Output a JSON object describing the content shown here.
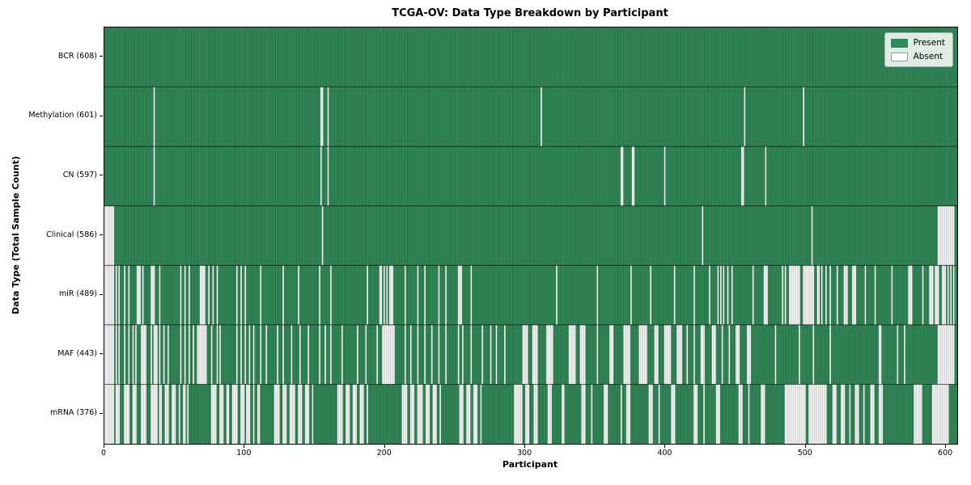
{
  "figure": {
    "title": "TCGA-OV: Data Type Breakdown by Participant",
    "xlabel": "Participant",
    "ylabel": "Data Type (Total Sample Count)"
  },
  "legend": {
    "items": [
      {
        "label": "Present",
        "color": "#2e8b57",
        "border": "#2e8b57"
      },
      {
        "label": "Absent",
        "color": "#ffffff",
        "border": "#999999"
      }
    ]
  },
  "chart_data": {
    "type": "heatmap",
    "title": "TCGA-OV: Data Type Breakdown by Participant",
    "xlabel": "Participant",
    "ylabel": "Data Type (Total Sample Count)",
    "legend": [
      "Present",
      "Absent"
    ],
    "legend_position": "upper right",
    "n_participants": 608,
    "x_range": [
      0,
      608
    ],
    "x_ticks": [
      0,
      100,
      200,
      300,
      400,
      500,
      600
    ],
    "colors": {
      "present": "#2e8b57",
      "absent": "#ffffff",
      "cell_edge": "rgba(0,0,0,0.32)",
      "row_separator": "#111111",
      "spine": "#000000"
    },
    "rows": [
      {
        "name": "BCR",
        "present_count": 608,
        "label": "BCR (608)",
        "absent_ranges": []
      },
      {
        "name": "Methylation",
        "present_count": 601,
        "label": "Methylation (601)",
        "absent_ranges": [
          [
            35,
            35
          ],
          [
            154,
            155
          ],
          [
            159,
            159
          ],
          [
            311,
            311
          ],
          [
            456,
            456
          ],
          [
            498,
            498
          ]
        ]
      },
      {
        "name": "CN",
        "present_count": 597,
        "label": "CN (597)",
        "absent_ranges": [
          [
            35,
            35
          ],
          [
            154,
            154
          ],
          [
            159,
            159
          ],
          [
            368,
            369
          ],
          [
            376,
            377
          ],
          [
            399,
            399
          ],
          [
            454,
            455
          ],
          [
            471,
            471
          ]
        ]
      },
      {
        "name": "Clinical",
        "present_count": 586,
        "label": "Clinical (586)",
        "absent_ranges": [
          [
            0,
            6
          ],
          [
            155,
            155
          ],
          [
            426,
            426
          ],
          [
            504,
            504
          ],
          [
            594,
            605
          ]
        ]
      },
      {
        "name": "miR",
        "present_count": 489,
        "label": "miR (489)",
        "absent_ranges": [
          [
            0,
            6
          ],
          [
            8,
            8
          ],
          [
            10,
            10
          ],
          [
            14,
            14
          ],
          [
            17,
            17
          ],
          [
            23,
            25
          ],
          [
            27,
            27
          ],
          [
            33,
            35
          ],
          [
            39,
            39
          ],
          [
            54,
            54
          ],
          [
            57,
            57
          ],
          [
            60,
            60
          ],
          [
            68,
            71
          ],
          [
            74,
            74
          ],
          [
            77,
            77
          ],
          [
            80,
            80
          ],
          [
            94,
            94
          ],
          [
            97,
            97
          ],
          [
            100,
            100
          ],
          [
            111,
            111
          ],
          [
            127,
            127
          ],
          [
            138,
            138
          ],
          [
            153,
            153
          ],
          [
            161,
            161
          ],
          [
            187,
            187
          ],
          [
            196,
            197
          ],
          [
            199,
            199
          ],
          [
            201,
            201
          ],
          [
            203,
            205
          ],
          [
            214,
            214
          ],
          [
            223,
            223
          ],
          [
            228,
            228
          ],
          [
            238,
            238
          ],
          [
            243,
            243
          ],
          [
            252,
            254
          ],
          [
            261,
            261
          ],
          [
            322,
            322
          ],
          [
            351,
            351
          ],
          [
            375,
            375
          ],
          [
            389,
            389
          ],
          [
            406,
            406
          ],
          [
            420,
            420
          ],
          [
            431,
            431
          ],
          [
            437,
            437
          ],
          [
            439,
            439
          ],
          [
            441,
            441
          ],
          [
            444,
            444
          ],
          [
            447,
            447
          ],
          [
            462,
            462
          ],
          [
            470,
            472
          ],
          [
            483,
            483
          ],
          [
            485,
            485
          ],
          [
            488,
            495
          ],
          [
            498,
            505
          ],
          [
            508,
            509
          ],
          [
            511,
            511
          ],
          [
            514,
            514
          ],
          [
            517,
            517
          ],
          [
            522,
            522
          ],
          [
            527,
            529
          ],
          [
            533,
            535
          ],
          [
            542,
            542
          ],
          [
            549,
            549
          ],
          [
            561,
            561
          ],
          [
            573,
            575
          ],
          [
            583,
            583
          ],
          [
            588,
            590
          ],
          [
            592,
            594
          ],
          [
            597,
            599
          ],
          [
            601,
            601
          ],
          [
            603,
            603
          ],
          [
            605,
            605
          ]
        ]
      },
      {
        "name": "MAF",
        "present_count": 443,
        "label": "MAF (443)",
        "absent_ranges": [
          [
            0,
            6
          ],
          [
            8,
            8
          ],
          [
            10,
            10
          ],
          [
            14,
            14
          ],
          [
            17,
            17
          ],
          [
            20,
            20
          ],
          [
            22,
            22
          ],
          [
            26,
            29
          ],
          [
            33,
            33
          ],
          [
            35,
            37
          ],
          [
            39,
            39
          ],
          [
            42,
            42
          ],
          [
            45,
            45
          ],
          [
            54,
            54
          ],
          [
            57,
            57
          ],
          [
            60,
            60
          ],
          [
            63,
            63
          ],
          [
            66,
            72
          ],
          [
            76,
            76
          ],
          [
            80,
            80
          ],
          [
            82,
            82
          ],
          [
            94,
            94
          ],
          [
            97,
            97
          ],
          [
            100,
            100
          ],
          [
            103,
            103
          ],
          [
            106,
            106
          ],
          [
            111,
            111
          ],
          [
            115,
            115
          ],
          [
            123,
            123
          ],
          [
            127,
            127
          ],
          [
            133,
            133
          ],
          [
            139,
            139
          ],
          [
            145,
            145
          ],
          [
            153,
            153
          ],
          [
            157,
            157
          ],
          [
            161,
            161
          ],
          [
            169,
            169
          ],
          [
            180,
            180
          ],
          [
            186,
            186
          ],
          [
            194,
            194
          ],
          [
            198,
            206
          ],
          [
            214,
            214
          ],
          [
            218,
            218
          ],
          [
            223,
            223
          ],
          [
            228,
            228
          ],
          [
            233,
            233
          ],
          [
            238,
            238
          ],
          [
            243,
            243
          ],
          [
            252,
            252
          ],
          [
            255,
            255
          ],
          [
            261,
            261
          ],
          [
            269,
            269
          ],
          [
            275,
            275
          ],
          [
            279,
            279
          ],
          [
            285,
            285
          ],
          [
            298,
            301
          ],
          [
            305,
            308
          ],
          [
            315,
            319
          ],
          [
            331,
            335
          ],
          [
            339,
            342
          ],
          [
            351,
            351
          ],
          [
            360,
            362
          ],
          [
            370,
            374
          ],
          [
            381,
            386
          ],
          [
            392,
            394
          ],
          [
            399,
            403
          ],
          [
            408,
            411
          ],
          [
            415,
            415
          ],
          [
            420,
            420
          ],
          [
            425,
            427
          ],
          [
            433,
            435
          ],
          [
            440,
            440
          ],
          [
            445,
            445
          ],
          [
            450,
            452
          ],
          [
            458,
            460
          ],
          [
            478,
            478
          ],
          [
            495,
            495
          ],
          [
            505,
            505
          ],
          [
            517,
            517
          ],
          [
            552,
            553
          ],
          [
            565,
            565
          ],
          [
            570,
            570
          ],
          [
            594,
            605
          ]
        ]
      },
      {
        "name": "mRNA",
        "present_count": 376,
        "label": "mRNA (376)",
        "absent_ranges": [
          [
            0,
            6
          ],
          [
            8,
            10
          ],
          [
            14,
            17
          ],
          [
            20,
            22
          ],
          [
            26,
            29
          ],
          [
            33,
            37
          ],
          [
            39,
            40
          ],
          [
            43,
            45
          ],
          [
            48,
            50
          ],
          [
            53,
            53
          ],
          [
            56,
            57
          ],
          [
            59,
            59
          ],
          [
            76,
            79
          ],
          [
            82,
            84
          ],
          [
            87,
            88
          ],
          [
            91,
            94
          ],
          [
            97,
            99
          ],
          [
            101,
            103
          ],
          [
            106,
            106
          ],
          [
            109,
            110
          ],
          [
            121,
            124
          ],
          [
            127,
            129
          ],
          [
            132,
            135
          ],
          [
            138,
            140
          ],
          [
            143,
            145
          ],
          [
            148,
            148
          ],
          [
            166,
            169
          ],
          [
            172,
            174
          ],
          [
            177,
            179
          ],
          [
            182,
            184
          ],
          [
            187,
            187
          ],
          [
            212,
            215
          ],
          [
            218,
            220
          ],
          [
            223,
            226
          ],
          [
            229,
            231
          ],
          [
            234,
            236
          ],
          [
            239,
            239
          ],
          [
            253,
            255
          ],
          [
            258,
            260
          ],
          [
            263,
            265
          ],
          [
            268,
            268
          ],
          [
            292,
            297
          ],
          [
            300,
            302
          ],
          [
            306,
            308
          ],
          [
            316,
            318
          ],
          [
            326,
            327
          ],
          [
            340,
            342
          ],
          [
            347,
            347
          ],
          [
            356,
            358
          ],
          [
            368,
            368
          ],
          [
            372,
            374
          ],
          [
            388,
            390
          ],
          [
            395,
            395
          ],
          [
            404,
            406
          ],
          [
            420,
            422
          ],
          [
            427,
            427
          ],
          [
            436,
            438
          ],
          [
            452,
            454
          ],
          [
            459,
            459
          ],
          [
            468,
            470
          ],
          [
            485,
            499
          ],
          [
            502,
            514
          ],
          [
            519,
            521
          ],
          [
            525,
            527
          ],
          [
            531,
            531
          ],
          [
            535,
            537
          ],
          [
            541,
            541
          ],
          [
            546,
            548
          ],
          [
            552,
            554
          ],
          [
            577,
            582
          ],
          [
            590,
            601
          ]
        ]
      }
    ]
  }
}
